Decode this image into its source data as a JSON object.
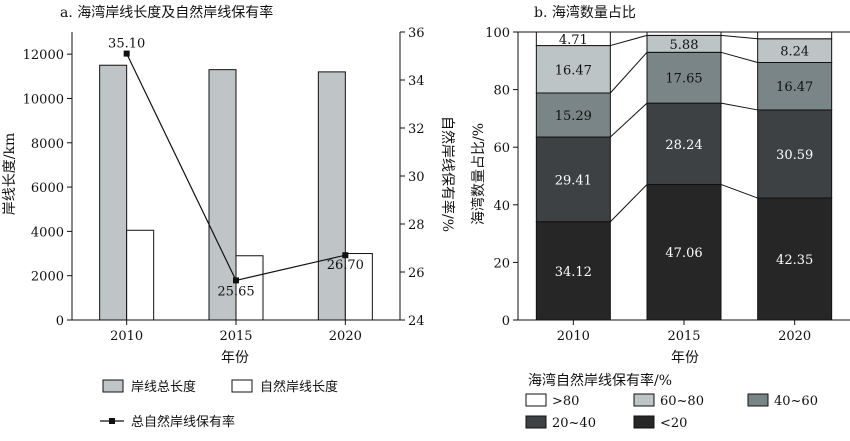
{
  "chart_data": [
    {
      "type": "bar",
      "title": "a. 海湾岸线长度及自然岸线保有率",
      "xlabel": "年份",
      "ylabel": "岸线长度/km",
      "y2label": "自然岸线保有率/%",
      "categories": [
        "2010",
        "2015",
        "2020"
      ],
      "ylim": [
        0,
        13000
      ],
      "yticks": [
        0,
        2000,
        4000,
        6000,
        8000,
        10000,
        12000
      ],
      "y2lim": [
        24,
        36
      ],
      "y2ticks": [
        24,
        26,
        28,
        30,
        32,
        34,
        36
      ],
      "series": [
        {
          "name": "岸线总长度",
          "values": [
            11500,
            11300,
            11200
          ],
          "color": "#bfc5c6"
        },
        {
          "name": "自然岸线长度",
          "values": [
            4050,
            2900,
            3000
          ],
          "color": "#ffffff"
        }
      ],
      "line_series": {
        "name": "总自然岸线保有率",
        "values": [
          35.1,
          25.65,
          26.7
        ],
        "labels": [
          "35.10",
          "25.65",
          "26.70"
        ],
        "color": "#111111"
      },
      "legend_position": "bottom"
    },
    {
      "type": "bar",
      "stacked": true,
      "title": "b. 海湾数量占比",
      "xlabel": "年份",
      "ylabel": "海湾数量占比/%",
      "categories": [
        "2010",
        "2015",
        "2020"
      ],
      "ylim": [
        0,
        100
      ],
      "yticks": [
        0,
        20,
        40,
        60,
        80,
        100
      ],
      "legend_title": "海湾自然岸线保有率/%",
      "legend_position": "bottom",
      "series": [
        {
          "name": "<20",
          "values": [
            34.12,
            47.06,
            42.35
          ],
          "labels": [
            "34.12",
            "47.06",
            "42.35"
          ],
          "color": "#262626",
          "textColor": "#ffffff"
        },
        {
          "name": "20~40",
          "values": [
            29.41,
            28.24,
            30.59
          ],
          "labels": [
            "29.41",
            "28.24",
            "30.59"
          ],
          "color": "#3d4143",
          "textColor": "#ffffff"
        },
        {
          "name": "40~60",
          "values": [
            15.29,
            17.65,
            16.47
          ],
          "labels": [
            "15.29",
            "17.65",
            "16.47"
          ],
          "color": "#7a8587",
          "textColor": "#111111"
        },
        {
          "name": "60~80",
          "values": [
            16.47,
            5.88,
            8.24
          ],
          "labels": [
            "16.47",
            "5.88",
            "8.24"
          ],
          "color": "#bcc4c5",
          "textColor": "#111111"
        },
        {
          "name": ">80",
          "values": [
            4.71,
            1.18,
            2.35
          ],
          "labels": [
            "4.71",
            "",
            ""
          ],
          "color": "#ffffff",
          "textColor": "#111111"
        }
      ]
    }
  ]
}
